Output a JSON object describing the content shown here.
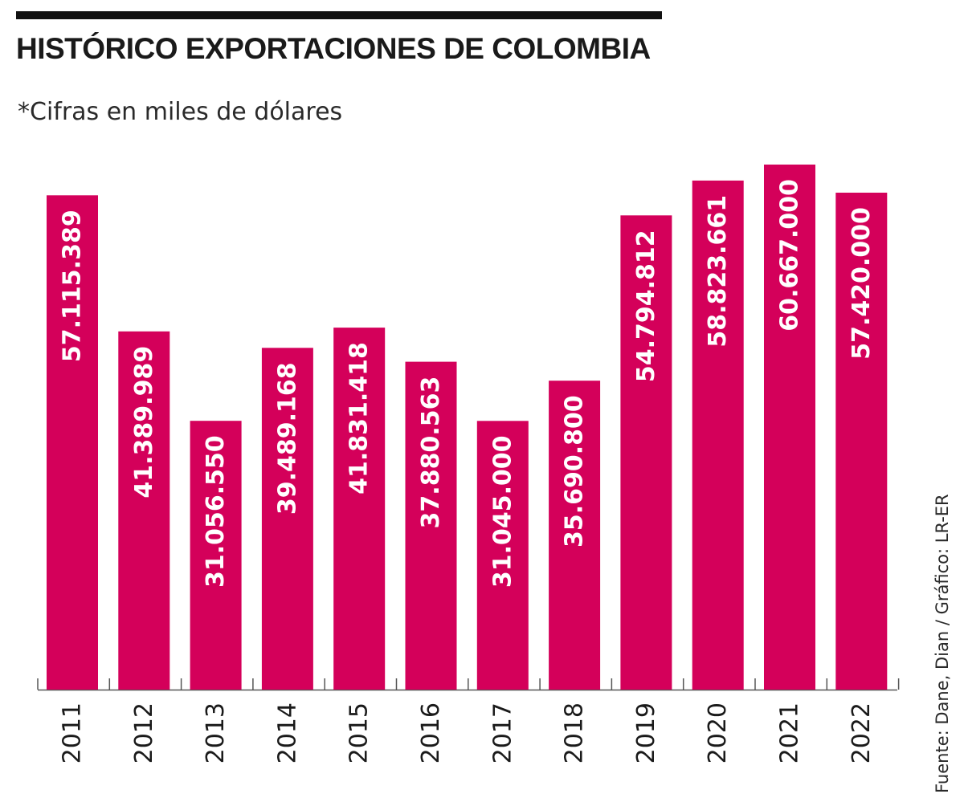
{
  "header": {
    "title": "HISTÓRICO EXPORTACIONES DE COLOMBIA",
    "subtitle": "*Cifras en miles de dólares"
  },
  "footer": {
    "source": "Fuente: Dane, Dian / Gráfico: LR-ER"
  },
  "colors": {
    "bar": "#d4005a",
    "axis": "#555555",
    "rule": "#111111"
  },
  "chart_data": {
    "type": "bar",
    "categories": [
      "2011",
      "2012",
      "2013",
      "2014",
      "2015",
      "2016",
      "2017",
      "2018",
      "2019",
      "2020",
      "2021",
      "2022"
    ],
    "values": [
      57115389,
      41389989,
      31056550,
      39489168,
      41831418,
      37880563,
      31045000,
      35690800,
      54794812,
      58823661,
      60667000,
      57420000
    ],
    "value_labels": [
      "57.115.389",
      "41.389.989",
      "31.056.550",
      "39.489.168",
      "41.831.418",
      "37.880.563",
      "31.045.000",
      "35.690.800",
      "54.794.812",
      "58.823.661",
      "60.667.000",
      "57.420.000"
    ],
    "ylim": [
      0,
      60667000
    ],
    "grid": false,
    "legend": "none"
  }
}
